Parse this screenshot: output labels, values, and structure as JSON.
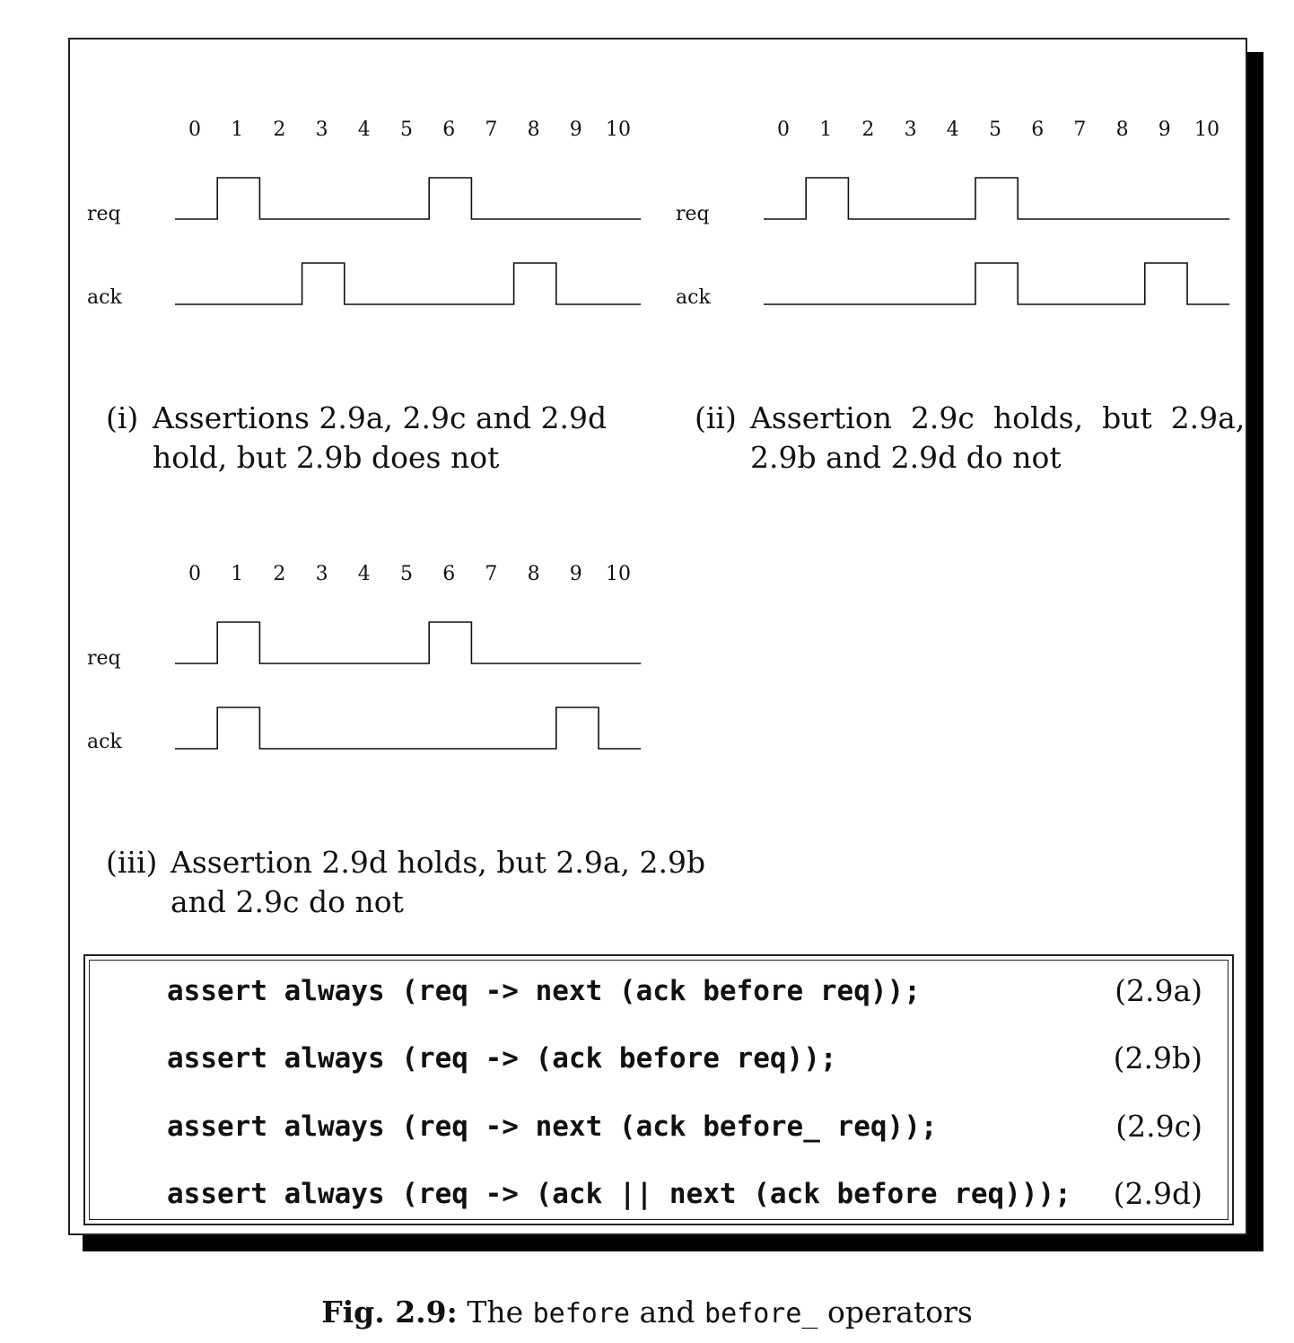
{
  "ticks": [
    "0",
    "1",
    "2",
    "3",
    "4",
    "5",
    "6",
    "7",
    "8",
    "9",
    "10"
  ],
  "signal_labels": {
    "req": "req",
    "ack": "ack"
  },
  "diagrams": [
    {
      "id": "i",
      "req_high": [
        1,
        6
      ],
      "ack_high": [
        3,
        8
      ],
      "label": "(i)",
      "caption_lines": [
        "Assertions 2.9a, 2.9c and 2.9d",
        "hold, but 2.9b does not"
      ]
    },
    {
      "id": "ii",
      "req_high": [
        1,
        5
      ],
      "ack_high": [
        5,
        9
      ],
      "label": "(ii)",
      "caption_lines": [
        "Assertion  2.9c  holds,  but  2.9a,",
        "2.9b and 2.9d do not"
      ]
    },
    {
      "id": "iii",
      "req_high": [
        1,
        6
      ],
      "ack_high": [
        1,
        9
      ],
      "label": "(iii)",
      "caption_lines": [
        "Assertion 2.9d holds, but 2.9a, 2.9b",
        "and 2.9c do not"
      ]
    }
  ],
  "assertions": [
    {
      "code": "assert always (req -> next (ack before req));",
      "ref": "(2.9a)"
    },
    {
      "code": "assert always (req -> (ack before req));",
      "ref": "(2.9b)"
    },
    {
      "code": "assert always (req -> next (ack before_ req));",
      "ref": "(2.9c)"
    },
    {
      "code": "assert always (req -> (ack || next (ack before req)));",
      "ref": "(2.9d)"
    }
  ],
  "figure_caption": {
    "label": "Fig. 2.9:",
    "t1": "The",
    "op1": "before",
    "t2": "and",
    "op2": "before_",
    "t3": "operators"
  }
}
